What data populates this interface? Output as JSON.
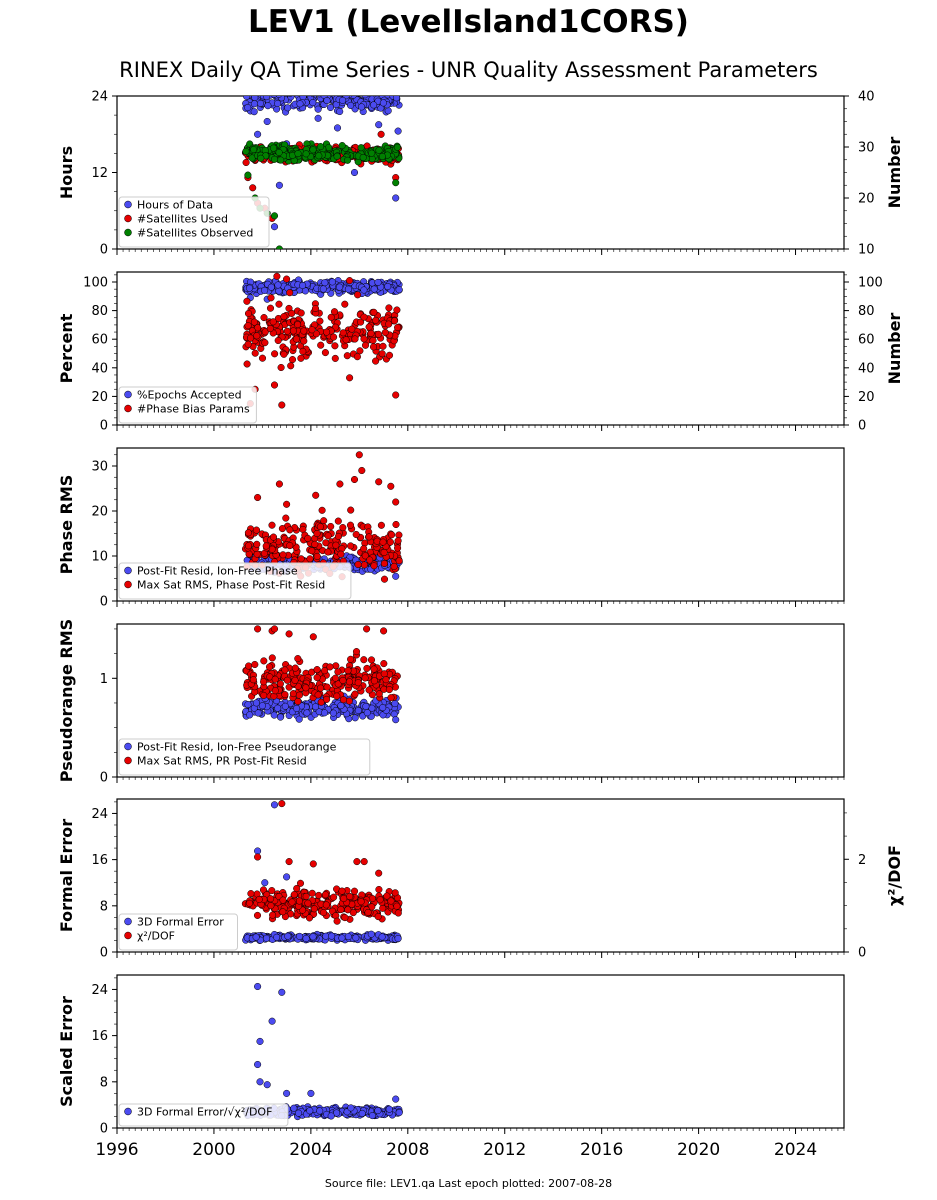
{
  "page": {
    "title": "LEV1 (LevelIsland1CORS)",
    "subtitle": "RINEX Daily QA Time Series - UNR Quality Assessment Parameters",
    "footer": "Source file: LEV1.qa Last epoch plotted: 2007-08-28"
  },
  "colors": {
    "blue": "#4b4bf0",
    "red": "#e60000",
    "green": "#008000"
  },
  "chart_data": [
    {
      "type": "scatter",
      "xlim": [
        1996.0,
        2026.0
      ],
      "x_ticks": [
        1996,
        2000,
        2004,
        2008,
        2012,
        2016,
        2020,
        2024
      ],
      "ylabel": "Hours",
      "ylim": [
        0,
        24
      ],
      "y_ticks": [
        0,
        12,
        24
      ],
      "ylabel_right": "Number",
      "ylim_right": [
        10,
        40
      ],
      "y_ticks_right": [
        10,
        20,
        30,
        40
      ],
      "legend_position": "lower-left",
      "series": [
        {
          "name": "Hours of Data",
          "color": "blue",
          "axis": "left",
          "x_range": [
            2001.3,
            2007.65
          ],
          "typical": 23.5,
          "spread": 1.2,
          "outliers": [
            [
              2001.8,
              18.0
            ],
            [
              2002.2,
              20.0
            ],
            [
              2002.4,
              16.0
            ],
            [
              2002.5,
              3.5
            ],
            [
              2002.7,
              10.0
            ],
            [
              2003.0,
              16.5
            ],
            [
              2004.3,
              20.5
            ],
            [
              2005.1,
              19.0
            ],
            [
              2005.8,
              12.0
            ],
            [
              2006.8,
              19.5
            ],
            [
              2007.5,
              8.0
            ],
            [
              2007.6,
              18.5
            ]
          ]
        },
        {
          "name": "#Satellites Used",
          "color": "red",
          "axis": "right",
          "x_range": [
            2001.3,
            2007.65
          ],
          "typical": 28.5,
          "spread": 1.0,
          "outliers": [
            [
              2001.4,
              24.0
            ],
            [
              2001.6,
              22.0
            ],
            [
              2001.8,
              19.0
            ],
            [
              2002.1,
              18.0
            ],
            [
              2002.4,
              16.0
            ],
            [
              2006.9,
              32.5
            ],
            [
              2007.5,
              24.0
            ]
          ]
        },
        {
          "name": "#Satellites Observed",
          "color": "green",
          "axis": "right",
          "x_range": [
            2001.3,
            2007.65
          ],
          "typical": 28.8,
          "spread": 1.0,
          "outliers": [
            [
              2001.4,
              24.5
            ],
            [
              2001.7,
              20.0
            ],
            [
              2001.9,
              18.0
            ],
            [
              2002.2,
              17.0
            ],
            [
              2002.5,
              16.5
            ],
            [
              2002.7,
              10.0
            ],
            [
              2007.5,
              23.0
            ]
          ]
        }
      ]
    },
    {
      "type": "scatter",
      "xlim": [
        1996.0,
        2026.0
      ],
      "x_ticks": [
        1996,
        2000,
        2004,
        2008,
        2012,
        2016,
        2020,
        2024
      ],
      "ylabel": "Percent",
      "ylim": [
        0,
        107
      ],
      "y_ticks": [
        0,
        20,
        40,
        60,
        80,
        100
      ],
      "ylabel_right": "Number",
      "ylim_right": [
        0,
        107
      ],
      "y_ticks_right": [
        0,
        20,
        40,
        60,
        80,
        100
      ],
      "legend_position": "lower-left",
      "series": [
        {
          "name": "%Epochs Accepted",
          "color": "blue",
          "axis": "left",
          "x_range": [
            2001.3,
            2007.65
          ],
          "typical": 96.5,
          "spread": 3.0,
          "outliers": [
            [
              2001.5,
              89.0
            ],
            [
              2002.2,
              88.0
            ]
          ]
        },
        {
          "name": "#Phase Bias Params",
          "color": "red",
          "axis": "right",
          "x_range": [
            2001.3,
            2007.65
          ],
          "typical": 65.0,
          "spread": 13.0,
          "outliers": [
            [
              2001.5,
              15.0
            ],
            [
              2001.7,
              25.0
            ],
            [
              2002.5,
              28.0
            ],
            [
              2002.8,
              14.0
            ],
            [
              2002.6,
              104.0
            ],
            [
              2003.0,
              102.0
            ],
            [
              2005.6,
              101.0
            ],
            [
              2005.6,
              33.0
            ],
            [
              2007.5,
              21.0
            ]
          ]
        }
      ]
    },
    {
      "type": "scatter",
      "xlim": [
        1996.0,
        2026.0
      ],
      "x_ticks": [
        1996,
        2000,
        2004,
        2008,
        2012,
        2016,
        2020,
        2024
      ],
      "ylabel": "Phase RMS",
      "ylim": [
        0,
        34
      ],
      "y_ticks": [
        0,
        10,
        20,
        30
      ],
      "legend_position": "lower-left",
      "series": [
        {
          "name": "Post-Fit Resid, Ion-Free Phase",
          "color": "blue",
          "axis": "left",
          "x_range": [
            2001.3,
            2007.65
          ],
          "typical": 8.3,
          "spread": 1.0,
          "outliers": [
            [
              2007.5,
              5.5
            ]
          ]
        },
        {
          "name": "Max Sat RMS, Phase Post-Fit Resid",
          "color": "red",
          "axis": "left",
          "x_range": [
            2001.3,
            2007.65
          ],
          "typical": 12.0,
          "spread": 4.0,
          "outliers": [
            [
              2001.8,
              23.0
            ],
            [
              2002.7,
              26.0
            ],
            [
              2003.0,
              21.5
            ],
            [
              2004.2,
              23.5
            ],
            [
              2005.2,
              26.0
            ],
            [
              2005.8,
              27.0
            ],
            [
              2006.0,
              32.5
            ],
            [
              2006.1,
              29.0
            ],
            [
              2006.8,
              26.5
            ],
            [
              2007.3,
              25.5
            ],
            [
              2007.5,
              22.0
            ]
          ]
        }
      ]
    },
    {
      "type": "scatter",
      "xlim": [
        1996.0,
        2026.0
      ],
      "x_ticks": [
        1996,
        2000,
        2004,
        2008,
        2012,
        2016,
        2020,
        2024
      ],
      "ylabel": "Pseudorange RMS",
      "ylim": [
        0,
        1.55
      ],
      "y_ticks": [
        0,
        1
      ],
      "legend_position": "lower-left",
      "series": [
        {
          "name": "Post-Fit Resid, Ion-Free Pseudorange",
          "color": "blue",
          "axis": "left",
          "x_range": [
            2001.3,
            2007.65
          ],
          "typical": 0.7,
          "spread": 0.06,
          "outliers": [
            [
              2007.5,
              0.58
            ]
          ]
        },
        {
          "name": "Max Sat RMS, PR Post-Fit Resid",
          "color": "red",
          "axis": "left",
          "x_range": [
            2001.3,
            2007.65
          ],
          "typical": 0.98,
          "spread": 0.14,
          "outliers": [
            [
              2001.8,
              1.5
            ],
            [
              2002.4,
              1.48
            ],
            [
              2002.5,
              1.5
            ],
            [
              2003.1,
              1.45
            ],
            [
              2004.1,
              1.42
            ],
            [
              2006.3,
              1.5
            ],
            [
              2007.0,
              1.48
            ]
          ]
        }
      ]
    },
    {
      "type": "scatter",
      "xlim": [
        1996.0,
        2026.0
      ],
      "x_ticks": [
        1996,
        2000,
        2004,
        2008,
        2012,
        2016,
        2020,
        2024
      ],
      "ylabel": "Formal Error",
      "ylim": [
        0,
        26.5
      ],
      "y_ticks": [
        0,
        8,
        16,
        24
      ],
      "ylabel_right": "χ²/DOF",
      "ylim_right": [
        0,
        3.3
      ],
      "y_ticks_right": [
        0,
        2
      ],
      "legend_position": "lower-left",
      "series": [
        {
          "name": "3D Formal Error",
          "color": "blue",
          "axis": "left",
          "x_range": [
            2001.3,
            2007.65
          ],
          "typical": 2.5,
          "spread": 0.3,
          "outliers": [
            [
              2001.8,
              17.5
            ],
            [
              2002.1,
              12.0
            ],
            [
              2002.5,
              25.5
            ],
            [
              2003.0,
              13.0
            ]
          ]
        },
        {
          "name": "χ²/DOF",
          "color": "red",
          "axis": "right",
          "x_range": [
            2001.3,
            2007.65
          ],
          "typical": 1.05,
          "spread": 0.2,
          "outliers": [
            [
              2001.8,
              2.05
            ],
            [
              2002.8,
              3.2
            ],
            [
              2003.1,
              1.95
            ],
            [
              2004.1,
              1.9
            ],
            [
              2005.9,
              1.95
            ],
            [
              2006.2,
              1.95
            ],
            [
              2006.8,
              1.7
            ]
          ]
        }
      ]
    },
    {
      "type": "scatter",
      "xlim": [
        1996.0,
        2026.0
      ],
      "x_ticks": [
        1996,
        2000,
        2004,
        2008,
        2012,
        2016,
        2020,
        2024
      ],
      "ylabel": "Scaled Error",
      "ylim": [
        0,
        26.5
      ],
      "y_ticks": [
        0,
        8,
        16,
        24
      ],
      "legend_position": "lower-left",
      "series": [
        {
          "name": "3D Formal Error/√χ²/DOF",
          "color": "blue",
          "axis": "left",
          "x_range": [
            2001.3,
            2007.65
          ],
          "typical": 2.8,
          "spread": 0.5,
          "outliers": [
            [
              2001.8,
              24.5
            ],
            [
              2001.9,
              15.0
            ],
            [
              2001.8,
              11.0
            ],
            [
              2001.9,
              8.0
            ],
            [
              2002.2,
              7.5
            ],
            [
              2002.4,
              18.5
            ],
            [
              2002.8,
              23.5
            ],
            [
              2003.0,
              6.0
            ],
            [
              2004.0,
              6.0
            ],
            [
              2007.5,
              5.0
            ]
          ]
        }
      ]
    }
  ]
}
